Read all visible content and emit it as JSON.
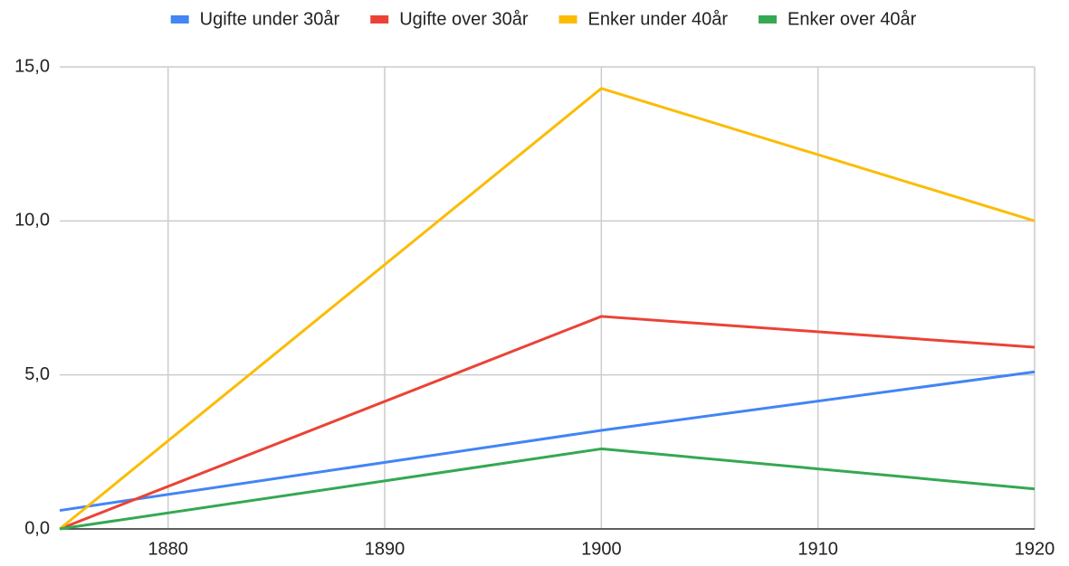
{
  "chart_data": {
    "type": "line",
    "x": [
      1875,
      1900,
      1920
    ],
    "series": [
      {
        "name": "Ugifte under 30år",
        "color": "#4285f4",
        "values": [
          0.6,
          3.2,
          5.1
        ]
      },
      {
        "name": "Ugifte over 30år",
        "color": "#ea4335",
        "values": [
          0,
          6.9,
          5.9
        ]
      },
      {
        "name": "Enker under 40år",
        "color": "#fbbc04",
        "values": [
          0,
          14.3,
          10.0
        ]
      },
      {
        "name": "Enker over 40år",
        "color": "#34a853",
        "values": [
          0,
          2.6,
          1.3
        ]
      }
    ],
    "xlim": [
      1875,
      1920
    ],
    "xticks": [
      1880,
      1890,
      1900,
      1910,
      1920
    ],
    "ylim": [
      0,
      15
    ],
    "yticks": [
      {
        "value": 0,
        "label": "0,0"
      },
      {
        "value": 5,
        "label": "5,0"
      },
      {
        "value": 10,
        "label": "10,0"
      },
      {
        "value": 15,
        "label": "15,0"
      }
    ],
    "grid": true,
    "legend": "top"
  }
}
